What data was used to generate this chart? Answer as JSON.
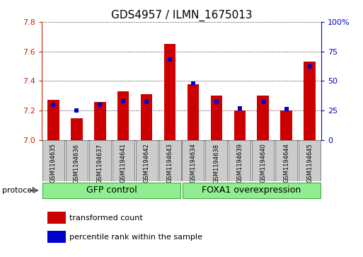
{
  "title": "GDS4957 / ILMN_1675013",
  "samples": [
    "GSM1194635",
    "GSM1194636",
    "GSM1194637",
    "GSM1194641",
    "GSM1194642",
    "GSM1194643",
    "GSM1194634",
    "GSM1194638",
    "GSM1194639",
    "GSM1194640",
    "GSM1194644",
    "GSM1194645"
  ],
  "red_values": [
    7.27,
    7.15,
    7.26,
    7.33,
    7.31,
    7.65,
    7.38,
    7.3,
    7.2,
    7.3,
    7.2,
    7.53
  ],
  "blue_values": [
    30,
    25,
    30,
    33,
    32,
    68,
    48,
    32,
    27,
    32,
    26,
    62
  ],
  "ylim_left": [
    7.0,
    7.8
  ],
  "ylim_right": [
    0,
    100
  ],
  "yticks_left": [
    7.0,
    7.2,
    7.4,
    7.6,
    7.8
  ],
  "yticks_right": [
    0,
    25,
    50,
    75,
    100
  ],
  "ytick_labels_right": [
    "0",
    "25",
    "50",
    "75",
    "100%"
  ],
  "baseline": 7.0,
  "bar_color": "#CC0000",
  "dot_color": "#0000CC",
  "grid_color": "#000000",
  "tick_label_color_left": "#CC2200",
  "tick_label_color_right": "#0000CC",
  "gfp_group": [
    0,
    1,
    2,
    3,
    4,
    5
  ],
  "foxa1_group": [
    6,
    7,
    8,
    9,
    10,
    11
  ],
  "gfp_label": "GFP control",
  "foxa1_label": "FOXA1 overexpression",
  "protocol_label": "protocol",
  "legend1": "transformed count",
  "legend2": "percentile rank within the sample",
  "bar_width": 0.5,
  "dot_size": 18,
  "group_bg_color": "#90EE90",
  "group_edge_color": "#44AA44",
  "sample_bg_color": "#CCCCCC",
  "sample_edge_color": "#888888",
  "title_fontsize": 11,
  "tick_fontsize": 8,
  "sample_fontsize": 6,
  "group_label_fontsize": 9,
  "legend_fontsize": 8
}
